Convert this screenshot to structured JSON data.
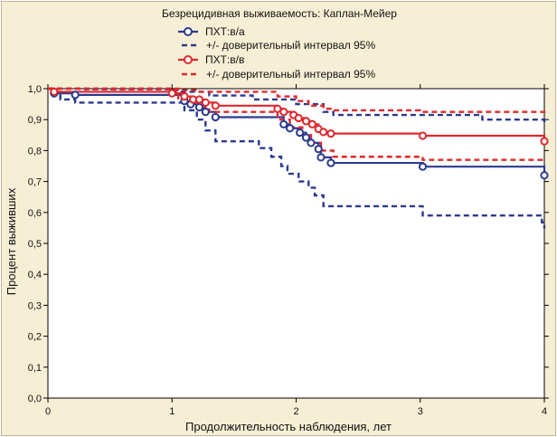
{
  "chart_data": {
    "type": "line",
    "title": "Безрецидивная выживаемость: Каплан-Мейер",
    "xlabel": "Продолжительность наблюдения, лет",
    "ylabel": "Процент выживших",
    "xlim": [
      0,
      4
    ],
    "ylim": [
      0,
      1
    ],
    "x_ticks": [
      "0",
      "1",
      "2",
      "3",
      "4"
    ],
    "y_ticks": [
      "0,0",
      "0,1",
      "0,2",
      "0,3",
      "0,4",
      "0,5",
      "0,6",
      "0,7",
      "0,8",
      "0,9",
      "1,0"
    ],
    "grid": false,
    "legend_position": "top-center",
    "legend": [
      {
        "label": "ПХТ:в/а",
        "style": "line-marker",
        "color": "#2b3a8f"
      },
      {
        "label": "+/- доверительный интервал 95%",
        "style": "dashed",
        "color": "#2b3a8f"
      },
      {
        "label": "ПХТ:в/в",
        "style": "line-marker",
        "color": "#e0282b"
      },
      {
        "label": "+/- доверительный интервал 95%",
        "style": "dashed",
        "color": "#e0282b"
      }
    ],
    "series": [
      {
        "name": "ПХТ:в/а",
        "color": "#2b3a8f",
        "style": "step",
        "points": [
          [
            0,
            1.0
          ],
          [
            0.05,
            0.985
          ],
          [
            0.22,
            0.98
          ],
          [
            1.1,
            0.96
          ],
          [
            1.15,
            0.95
          ],
          [
            1.2,
            0.94
          ],
          [
            1.25,
            0.925
          ],
          [
            1.35,
            0.908
          ],
          [
            1.9,
            0.885
          ],
          [
            1.95,
            0.872
          ],
          [
            2.03,
            0.858
          ],
          [
            2.08,
            0.842
          ],
          [
            2.12,
            0.825
          ],
          [
            2.18,
            0.805
          ],
          [
            2.2,
            0.778
          ],
          [
            2.28,
            0.76
          ],
          [
            3.02,
            0.748
          ],
          [
            4.0,
            0.72
          ]
        ]
      },
      {
        "name": "",
        "color": "#2b3a8f",
        "style": "dashed-step",
        "points": [
          [
            0,
            1.0
          ],
          [
            0.05,
            0.99
          ],
          [
            0.1,
            0.965
          ],
          [
            0.22,
            0.955
          ],
          [
            1.1,
            0.93
          ],
          [
            1.2,
            0.9
          ],
          [
            1.27,
            0.865
          ],
          [
            1.35,
            0.83
          ],
          [
            1.7,
            0.808
          ],
          [
            1.8,
            0.78
          ],
          [
            1.88,
            0.75
          ],
          [
            1.93,
            0.725
          ],
          [
            2.02,
            0.7
          ],
          [
            2.1,
            0.68
          ],
          [
            2.15,
            0.655
          ],
          [
            2.22,
            0.62
          ],
          [
            3.02,
            0.59
          ],
          [
            3.98,
            0.568
          ],
          [
            4.0,
            0.548
          ]
        ]
      },
      {
        "name": "",
        "color": "#2b3a8f",
        "style": "dashed-step",
        "points": [
          [
            0,
            1.0
          ],
          [
            0.3,
            0.998
          ],
          [
            1.0,
            0.99
          ],
          [
            1.3,
            0.978
          ],
          [
            1.65,
            0.965
          ],
          [
            2.0,
            0.95
          ],
          [
            2.22,
            0.925
          ],
          [
            2.3,
            0.915
          ],
          [
            3.5,
            0.9
          ],
          [
            4.0,
            0.89
          ]
        ]
      },
      {
        "name": "ПХТ:в/в",
        "color": "#e0282b",
        "style": "step",
        "points": [
          [
            0,
            1.0
          ],
          [
            0.05,
            0.99
          ],
          [
            1.0,
            0.985
          ],
          [
            1.1,
            0.975
          ],
          [
            1.17,
            0.965
          ],
          [
            1.25,
            0.955
          ],
          [
            1.35,
            0.945
          ],
          [
            1.85,
            0.935
          ],
          [
            1.9,
            0.925
          ],
          [
            1.98,
            0.915
          ],
          [
            2.02,
            0.905
          ],
          [
            2.08,
            0.895
          ],
          [
            2.13,
            0.885
          ],
          [
            2.18,
            0.87
          ],
          [
            2.22,
            0.86
          ],
          [
            2.28,
            0.855
          ],
          [
            3.02,
            0.848
          ],
          [
            4.0,
            0.83
          ]
        ]
      },
      {
        "name": "",
        "color": "#e0282b",
        "style": "dashed-step",
        "points": [
          [
            0,
            1.0
          ],
          [
            1.05,
            0.965
          ],
          [
            1.2,
            0.94
          ],
          [
            1.3,
            0.925
          ],
          [
            1.85,
            0.9
          ],
          [
            1.95,
            0.875
          ],
          [
            2.05,
            0.85
          ],
          [
            2.12,
            0.825
          ],
          [
            2.2,
            0.8
          ],
          [
            2.3,
            0.78
          ],
          [
            3.02,
            0.77
          ],
          [
            4.0,
            0.765
          ]
        ]
      },
      {
        "name": "",
        "color": "#e0282b",
        "style": "dashed-step",
        "points": [
          [
            0,
            1.0
          ],
          [
            1.0,
            0.995
          ],
          [
            1.2,
            0.99
          ],
          [
            1.85,
            0.975
          ],
          [
            2.0,
            0.96
          ],
          [
            2.1,
            0.945
          ],
          [
            2.22,
            0.935
          ],
          [
            2.3,
            0.93
          ],
          [
            3.0,
            0.925
          ],
          [
            4.0,
            0.92
          ]
        ]
      }
    ],
    "markers": [
      {
        "series": 0,
        "x": [
          0.05,
          0.22,
          1.1,
          1.15,
          1.22,
          1.27,
          1.35,
          1.9,
          1.95,
          2.03,
          2.08,
          2.12,
          2.18,
          2.2,
          2.28,
          3.02,
          4.0
        ]
      },
      {
        "series": 3,
        "x": [
          0.05,
          1.0,
          1.1,
          1.17,
          1.22,
          1.27,
          1.35,
          1.85,
          1.9,
          1.98,
          2.02,
          2.08,
          2.13,
          2.18,
          2.22,
          2.28,
          3.02,
          4.0
        ]
      }
    ]
  }
}
